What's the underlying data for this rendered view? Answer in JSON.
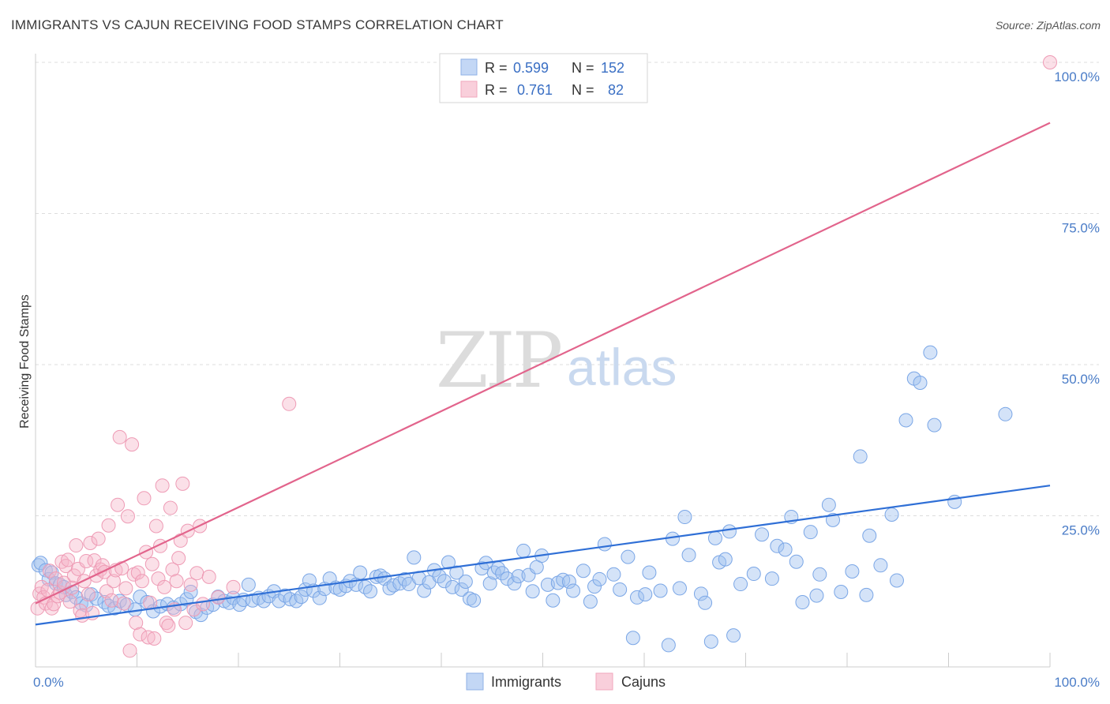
{
  "title": "IMMIGRANTS VS CAJUN RECEIVING FOOD STAMPS CORRELATION CHART",
  "source": "Source: ZipAtlas.com",
  "watermark": {
    "zip": "ZIP",
    "atlas": "atlas"
  },
  "legend_top": {
    "rows": [
      {
        "r_label": "R =",
        "r_value": "0.599",
        "n_label": "N =",
        "n_value": "152",
        "color": "#9fbfef"
      },
      {
        "r_label": "R =",
        "r_value": "0.761",
        "n_label": "N =",
        "n_value": "82",
        "color": "#f5b6c8"
      }
    ]
  },
  "legend_bottom": [
    {
      "label": "Immigrants",
      "color": "#9fbfef"
    },
    {
      "label": "Cajuns",
      "color": "#f5b6c8"
    }
  ],
  "chart_data": {
    "type": "scatter",
    "title": "IMMIGRANTS VS CAJUN RECEIVING FOOD STAMPS CORRELATION CHART",
    "xlabel": "",
    "ylabel": "Receiving Food Stamps",
    "xlim": [
      0,
      100
    ],
    "ylim": [
      0,
      100
    ],
    "x_tick_labels": [
      "0.0%",
      "100.0%"
    ],
    "y_tick_labels": [
      {
        "value": 25,
        "label": "25.0%"
      },
      {
        "value": 50,
        "label": "50.0%"
      },
      {
        "value": 75,
        "label": "75.0%"
      },
      {
        "value": 100,
        "label": "100.0%"
      }
    ],
    "grid": true,
    "series": [
      {
        "name": "Immigrants",
        "color": "#6f9fe3",
        "trend": {
          "x": [
            0,
            100
          ],
          "y": [
            7,
            30
          ]
        },
        "points": [
          [
            0.3,
            16.8
          ],
          [
            0.5,
            17.2
          ],
          [
            1.0,
            16.0
          ],
          [
            1.3,
            14.5
          ],
          [
            1.6,
            15.6
          ],
          [
            2.0,
            13.8
          ],
          [
            2.4,
            13.6
          ],
          [
            2.8,
            13.2
          ],
          [
            3.0,
            11.9
          ],
          [
            3.6,
            12.4
          ],
          [
            4.0,
            11.5
          ],
          [
            4.5,
            10.5
          ],
          [
            5.0,
            10.2
          ],
          [
            5.5,
            12.0
          ],
          [
            6.0,
            11.3
          ],
          [
            6.8,
            10.7
          ],
          [
            7.2,
            10.1
          ],
          [
            7.8,
            9.7
          ],
          [
            8.3,
            10.9
          ],
          [
            9.0,
            10.3
          ],
          [
            9.8,
            9.5
          ],
          [
            10.3,
            11.6
          ],
          [
            11.0,
            10.7
          ],
          [
            11.6,
            9.2
          ],
          [
            12.3,
            10.0
          ],
          [
            13.0,
            10.4
          ],
          [
            13.6,
            9.8
          ],
          [
            14.3,
            10.4
          ],
          [
            14.9,
            11.2
          ],
          [
            15.3,
            12.4
          ],
          [
            15.8,
            9.1
          ],
          [
            16.3,
            8.6
          ],
          [
            16.9,
            9.8
          ],
          [
            17.5,
            10.3
          ],
          [
            18.0,
            11.6
          ],
          [
            18.6,
            10.9
          ],
          [
            19.1,
            10.6
          ],
          [
            19.5,
            11.4
          ],
          [
            20.1,
            10.3
          ],
          [
            20.5,
            11.1
          ],
          [
            21.0,
            13.6
          ],
          [
            21.4,
            11.0
          ],
          [
            22.0,
            11.4
          ],
          [
            22.5,
            10.9
          ],
          [
            23.0,
            11.7
          ],
          [
            23.5,
            12.5
          ],
          [
            24.0,
            10.9
          ],
          [
            24.6,
            11.8
          ],
          [
            25.1,
            11.2
          ],
          [
            25.7,
            10.9
          ],
          [
            26.2,
            11.6
          ],
          [
            26.6,
            12.8
          ],
          [
            27.0,
            14.3
          ],
          [
            27.4,
            12.6
          ],
          [
            28.0,
            11.4
          ],
          [
            28.5,
            12.9
          ],
          [
            29.0,
            14.6
          ],
          [
            29.6,
            13.1
          ],
          [
            30.0,
            12.8
          ],
          [
            30.6,
            13.4
          ],
          [
            31.0,
            14.2
          ],
          [
            31.6,
            13.6
          ],
          [
            32.0,
            15.6
          ],
          [
            32.5,
            13.2
          ],
          [
            33.0,
            12.5
          ],
          [
            33.6,
            14.9
          ],
          [
            34.0,
            15.1
          ],
          [
            34.4,
            14.6
          ],
          [
            34.9,
            13.0
          ],
          [
            35.3,
            13.5
          ],
          [
            35.9,
            13.8
          ],
          [
            36.4,
            14.5
          ],
          [
            36.8,
            13.7
          ],
          [
            37.3,
            18.1
          ],
          [
            37.8,
            14.7
          ],
          [
            38.3,
            12.6
          ],
          [
            38.8,
            14.0
          ],
          [
            39.3,
            16.0
          ],
          [
            39.8,
            15.0
          ],
          [
            40.3,
            14.2
          ],
          [
            40.7,
            17.3
          ],
          [
            41.1,
            13.2
          ],
          [
            41.5,
            15.6
          ],
          [
            42.0,
            12.8
          ],
          [
            42.4,
            14.1
          ],
          [
            42.8,
            11.3
          ],
          [
            43.2,
            11.0
          ],
          [
            44.0,
            16.3
          ],
          [
            44.4,
            17.2
          ],
          [
            44.8,
            13.8
          ],
          [
            45.2,
            15.6
          ],
          [
            45.6,
            16.3
          ],
          [
            46.0,
            15.5
          ],
          [
            46.5,
            14.6
          ],
          [
            47.2,
            13.8
          ],
          [
            47.6,
            15.0
          ],
          [
            48.1,
            19.2
          ],
          [
            48.6,
            15.2
          ],
          [
            49.0,
            12.5
          ],
          [
            49.4,
            16.5
          ],
          [
            49.9,
            18.4
          ],
          [
            50.5,
            13.6
          ],
          [
            51.0,
            11.0
          ],
          [
            51.5,
            13.9
          ],
          [
            52.0,
            14.4
          ],
          [
            52.6,
            14.1
          ],
          [
            53.0,
            12.6
          ],
          [
            54.0,
            15.9
          ],
          [
            54.7,
            10.8
          ],
          [
            55.1,
            13.3
          ],
          [
            55.6,
            14.5
          ],
          [
            56.1,
            20.3
          ],
          [
            57.0,
            15.3
          ],
          [
            57.6,
            12.8
          ],
          [
            58.4,
            18.2
          ],
          [
            58.9,
            4.8
          ],
          [
            59.3,
            11.5
          ],
          [
            60.1,
            12.0
          ],
          [
            60.5,
            15.6
          ],
          [
            61.6,
            12.6
          ],
          [
            62.4,
            3.6
          ],
          [
            62.8,
            21.2
          ],
          [
            63.5,
            13.0
          ],
          [
            64.0,
            24.8
          ],
          [
            64.4,
            18.5
          ],
          [
            65.6,
            12.1
          ],
          [
            66.0,
            10.6
          ],
          [
            66.6,
            4.2
          ],
          [
            67.0,
            21.3
          ],
          [
            67.4,
            17.3
          ],
          [
            68.0,
            17.8
          ],
          [
            68.4,
            22.4
          ],
          [
            68.8,
            5.2
          ],
          [
            69.5,
            13.7
          ],
          [
            70.8,
            15.4
          ],
          [
            71.6,
            21.9
          ],
          [
            72.6,
            14.6
          ],
          [
            73.1,
            20.0
          ],
          [
            73.9,
            19.4
          ],
          [
            74.5,
            24.8
          ],
          [
            75.0,
            17.4
          ],
          [
            75.6,
            10.7
          ],
          [
            76.4,
            22.3
          ],
          [
            77.0,
            11.8
          ],
          [
            77.3,
            15.3
          ],
          [
            78.2,
            26.8
          ],
          [
            78.6,
            24.3
          ],
          [
            79.4,
            12.4
          ],
          [
            80.5,
            15.8
          ],
          [
            81.3,
            34.8
          ],
          [
            81.9,
            11.9
          ],
          [
            82.2,
            21.7
          ],
          [
            83.3,
            16.8
          ],
          [
            84.4,
            25.2
          ],
          [
            84.9,
            14.3
          ],
          [
            85.8,
            40.8
          ],
          [
            86.6,
            47.7
          ],
          [
            87.2,
            47.0
          ],
          [
            88.2,
            52.0
          ],
          [
            88.6,
            40.0
          ],
          [
            90.6,
            27.3
          ],
          [
            95.6,
            41.8
          ]
        ]
      },
      {
        "name": "Cajuns",
        "color": "#ee8aa8",
        "trend": {
          "x": [
            0,
            100
          ],
          "y": [
            10.5,
            90
          ]
        },
        "points": [
          [
            0.2,
            9.7
          ],
          [
            0.4,
            12.1
          ],
          [
            0.6,
            13.2
          ],
          [
            0.8,
            11.5
          ],
          [
            1.0,
            10.5
          ],
          [
            1.2,
            12.7
          ],
          [
            1.4,
            15.9
          ],
          [
            1.6,
            9.7
          ],
          [
            1.8,
            10.4
          ],
          [
            2.0,
            14.6
          ],
          [
            2.2,
            11.7
          ],
          [
            2.4,
            12.3
          ],
          [
            2.6,
            17.4
          ],
          [
            2.8,
            13.9
          ],
          [
            3.0,
            16.7
          ],
          [
            3.2,
            17.7
          ],
          [
            3.4,
            10.8
          ],
          [
            3.6,
            13.1
          ],
          [
            3.8,
            15.1
          ],
          [
            4.0,
            20.1
          ],
          [
            4.2,
            16.2
          ],
          [
            4.4,
            9.3
          ],
          [
            4.6,
            8.5
          ],
          [
            4.8,
            14.2
          ],
          [
            5.0,
            17.5
          ],
          [
            5.2,
            12.0
          ],
          [
            5.4,
            20.5
          ],
          [
            5.6,
            8.9
          ],
          [
            5.8,
            17.6
          ],
          [
            6.0,
            15.1
          ],
          [
            6.2,
            21.2
          ],
          [
            6.4,
            16.1
          ],
          [
            6.6,
            16.8
          ],
          [
            6.8,
            15.7
          ],
          [
            7.0,
            12.5
          ],
          [
            7.2,
            23.4
          ],
          [
            7.5,
            11.0
          ],
          [
            7.7,
            14.2
          ],
          [
            7.9,
            16.0
          ],
          [
            8.1,
            26.8
          ],
          [
            8.3,
            38.0
          ],
          [
            8.5,
            16.3
          ],
          [
            8.7,
            10.5
          ],
          [
            8.9,
            13.0
          ],
          [
            9.1,
            24.9
          ],
          [
            9.3,
            2.7
          ],
          [
            9.5,
            36.8
          ],
          [
            9.7,
            15.3
          ],
          [
            9.9,
            7.3
          ],
          [
            10.1,
            15.6
          ],
          [
            10.3,
            5.4
          ],
          [
            10.5,
            14.2
          ],
          [
            10.7,
            27.9
          ],
          [
            10.9,
            19.0
          ],
          [
            11.1,
            4.9
          ],
          [
            11.3,
            10.6
          ],
          [
            11.5,
            17.0
          ],
          [
            11.7,
            4.7
          ],
          [
            11.9,
            23.3
          ],
          [
            12.1,
            14.6
          ],
          [
            12.3,
            20.0
          ],
          [
            12.5,
            30.0
          ],
          [
            12.7,
            13.2
          ],
          [
            12.9,
            7.3
          ],
          [
            13.1,
            6.8
          ],
          [
            13.3,
            26.3
          ],
          [
            13.5,
            16.1
          ],
          [
            13.7,
            9.5
          ],
          [
            13.9,
            14.2
          ],
          [
            14.1,
            18.0
          ],
          [
            14.3,
            20.9
          ],
          [
            14.5,
            30.3
          ],
          [
            14.8,
            7.3
          ],
          [
            15.0,
            22.5
          ],
          [
            15.3,
            13.6
          ],
          [
            15.6,
            9.5
          ],
          [
            15.9,
            15.5
          ],
          [
            16.2,
            23.3
          ],
          [
            16.5,
            10.4
          ],
          [
            17.1,
            14.9
          ],
          [
            18.0,
            11.5
          ],
          [
            19.5,
            13.2
          ],
          [
            25.0,
            43.5
          ],
          [
            100.0,
            100.0
          ]
        ]
      }
    ]
  }
}
